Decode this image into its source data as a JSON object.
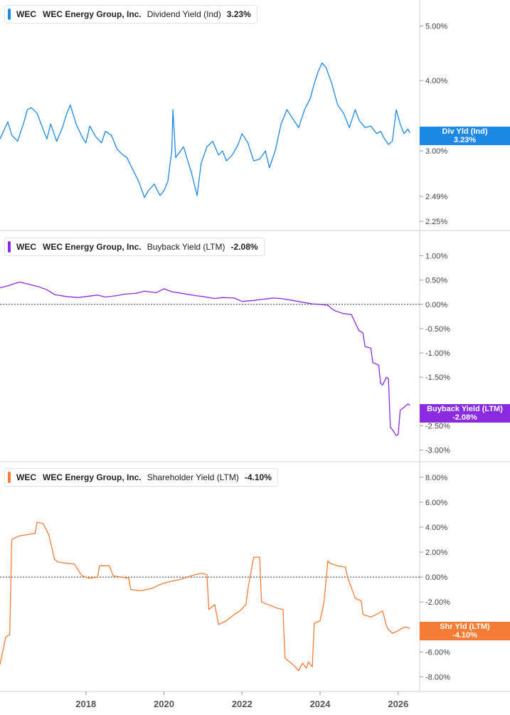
{
  "colors": {
    "dividend": "#1E88E5",
    "buyback": "#8A2BE2",
    "shareholder": "#F57C35"
  },
  "chart_data": [
    {
      "type": "line",
      "ticker": "WEC",
      "company": "WEC Energy Group, Inc.",
      "metric": "Dividend Yield (Ind)",
      "value": "3.23%",
      "badge_label": "Div Yld (Ind)",
      "badge_value": "3.23%",
      "y_scale": "log",
      "yticks": [
        "5.00%",
        "4.00%",
        "3.00%",
        "2.49%",
        "2.25%"
      ],
      "ytick_values": [
        5.0,
        4.0,
        3.0,
        2.49,
        2.25
      ],
      "ylim": [
        2.25,
        5.4
      ],
      "series": [
        {
          "x": [
            2015.8,
            2016.0,
            2016.1,
            2016.25,
            2016.4,
            2016.5,
            2016.6,
            2016.75,
            2016.9,
            2017.0,
            2017.1,
            2017.25,
            2017.4,
            2017.5,
            2017.6,
            2017.75,
            2017.9,
            2018.0,
            2018.1,
            2018.25,
            2018.4,
            2018.5,
            2018.65,
            2018.8,
            2018.95,
            2019.05,
            2019.2,
            2019.35,
            2019.5,
            2019.6,
            2019.75,
            2019.9,
            2020.0,
            2020.1,
            2020.2,
            2020.23,
            2020.3,
            2020.5,
            2020.7,
            2020.85,
            2020.95,
            2021.1,
            2021.25,
            2021.4,
            2021.5,
            2021.6,
            2021.75,
            2021.9,
            2022.0,
            2022.15,
            2022.3,
            2022.45,
            2022.6,
            2022.7,
            2022.85,
            2023.0,
            2023.15,
            2023.3,
            2023.45,
            2023.6,
            2023.75,
            2023.85,
            2023.95,
            2024.05,
            2024.15,
            2024.3,
            2024.45,
            2024.6,
            2024.75,
            2024.9,
            2025.0,
            2025.15,
            2025.3,
            2025.45,
            2025.55,
            2025.65,
            2025.75,
            2025.85,
            2025.95,
            2026.05,
            2026.15,
            2026.25,
            2026.3
          ],
          "values": [
            3.15,
            3.38,
            3.2,
            3.12,
            3.35,
            3.55,
            3.58,
            3.5,
            3.28,
            3.15,
            3.35,
            3.12,
            3.3,
            3.48,
            3.62,
            3.35,
            3.18,
            3.1,
            3.32,
            3.18,
            3.1,
            3.25,
            3.2,
            3.02,
            2.95,
            2.92,
            2.78,
            2.65,
            2.48,
            2.55,
            2.62,
            2.5,
            2.55,
            2.65,
            3.0,
            3.55,
            2.92,
            3.05,
            2.75,
            2.5,
            2.85,
            3.05,
            3.12,
            2.95,
            3.0,
            2.88,
            2.95,
            3.08,
            3.22,
            3.1,
            2.88,
            2.9,
            3.0,
            2.8,
            3.0,
            3.35,
            3.55,
            3.42,
            3.3,
            3.55,
            3.72,
            3.95,
            4.15,
            4.3,
            4.22,
            3.95,
            3.62,
            3.5,
            3.3,
            3.55,
            3.4,
            3.3,
            3.32,
            3.22,
            3.25,
            3.15,
            3.08,
            3.12,
            3.55,
            3.35,
            3.22,
            3.28,
            3.23
          ]
        }
      ]
    },
    {
      "type": "line",
      "ticker": "WEC",
      "company": "WEC Energy Group, Inc.",
      "metric": "Buyback Yield (LTM)",
      "value": "-2.08%",
      "badge_label": "Buyback Yield (LTM)",
      "badge_value": "-2.08%",
      "yticks": [
        "1.00%",
        "0.50%",
        "0.00%",
        "-0.50%",
        "-1.00%",
        "-1.50%",
        "-2.50%",
        "-3.00%"
      ],
      "ytick_values": [
        1.0,
        0.5,
        0.0,
        -0.5,
        -1.0,
        -1.5,
        -2.5,
        -3.0
      ],
      "ylim": [
        -3.05,
        1.3
      ],
      "series": [
        {
          "x": [
            2015.8,
            2016.0,
            2016.3,
            2016.5,
            2016.8,
            2017.0,
            2017.2,
            2017.5,
            2017.8,
            2018.0,
            2018.3,
            2018.5,
            2018.8,
            2019.0,
            2019.3,
            2019.5,
            2019.8,
            2020.0,
            2020.2,
            2020.5,
            2020.8,
            2021.0,
            2021.3,
            2021.5,
            2021.8,
            2022.0,
            2022.3,
            2022.5,
            2022.8,
            2023.0,
            2023.3,
            2023.5,
            2023.8,
            2024.0,
            2024.2,
            2024.3,
            2024.4,
            2024.6,
            2024.8,
            2025.0,
            2025.05,
            2025.1,
            2025.15,
            2025.3,
            2025.35,
            2025.5,
            2025.55,
            2025.6,
            2025.7,
            2025.75,
            2025.8,
            2025.85,
            2025.95,
            2026.0,
            2026.05,
            2026.15,
            2026.25,
            2026.3
          ],
          "values": [
            0.34,
            0.38,
            0.46,
            0.42,
            0.36,
            0.3,
            0.2,
            0.16,
            0.14,
            0.16,
            0.19,
            0.15,
            0.18,
            0.21,
            0.23,
            0.27,
            0.24,
            0.32,
            0.26,
            0.22,
            0.18,
            0.16,
            0.12,
            0.14,
            0.13,
            0.06,
            0.08,
            0.1,
            0.13,
            0.12,
            0.08,
            0.05,
            0.01,
            0.0,
            -0.02,
            -0.09,
            -0.14,
            -0.19,
            -0.21,
            -0.55,
            -0.56,
            -0.6,
            -0.87,
            -0.9,
            -1.2,
            -1.25,
            -1.63,
            -1.66,
            -1.5,
            -1.53,
            -2.53,
            -2.58,
            -2.7,
            -2.68,
            -2.18,
            -2.12,
            -2.05,
            -2.08
          ]
        }
      ]
    },
    {
      "type": "line",
      "ticker": "WEC",
      "company": "WEC Energy Group, Inc.",
      "metric": "Shareholder Yield (LTM)",
      "value": "-4.10%",
      "badge_label": "Shr Yld (LTM)",
      "badge_value": "-4.10%",
      "yticks": [
        "8.00%",
        "6.00%",
        "4.00%",
        "2.00%",
        "0.00%",
        "-2.00%",
        "-6.00%",
        "-8.00%"
      ],
      "ytick_values": [
        8.0,
        6.0,
        4.0,
        2.0,
        0.0,
        -2.0,
        -6.0,
        -8.0
      ],
      "ylim": [
        -8.6,
        8.5
      ],
      "series": [
        {
          "x": [
            2015.8,
            2015.95,
            2016.05,
            2016.1,
            2016.15,
            2016.3,
            2016.5,
            2016.7,
            2016.75,
            2016.9,
            2017.0,
            2017.05,
            2017.2,
            2017.3,
            2017.5,
            2017.7,
            2017.9,
            2018.1,
            2018.3,
            2018.35,
            2018.6,
            2018.7,
            2018.9,
            2019.1,
            2019.15,
            2019.4,
            2019.7,
            2019.9,
            2020.1,
            2020.4,
            2020.6,
            2020.8,
            2020.95,
            2021.1,
            2021.15,
            2021.3,
            2021.4,
            2021.6,
            2021.8,
            2021.95,
            2022.1,
            2022.15,
            2022.25,
            2022.3,
            2022.45,
            2022.5,
            2022.75,
            2022.9,
            2023.05,
            2023.1,
            2023.3,
            2023.45,
            2023.55,
            2023.65,
            2023.7,
            2023.8,
            2023.85,
            2024.0,
            2024.1,
            2024.2,
            2024.25,
            2024.45,
            2024.65,
            2024.7,
            2024.9,
            2025.05,
            2025.1,
            2025.3,
            2025.5,
            2025.6,
            2025.7,
            2025.75,
            2025.85,
            2026.0,
            2026.1,
            2026.2,
            2026.3
          ],
          "values": [
            -7.0,
            -4.8,
            -4.6,
            3.0,
            3.1,
            3.3,
            3.4,
            3.5,
            4.4,
            4.3,
            3.7,
            3.4,
            1.4,
            1.2,
            1.1,
            1.05,
            0.1,
            -0.1,
            0.0,
            0.9,
            0.9,
            0.1,
            0.0,
            -0.1,
            -1.0,
            -1.1,
            -0.9,
            -0.6,
            -0.4,
            -0.2,
            0.0,
            0.2,
            0.3,
            0.2,
            -2.6,
            -2.2,
            -3.8,
            -3.5,
            -3.0,
            -2.7,
            -2.2,
            -1.0,
            0.8,
            1.6,
            1.6,
            -2.0,
            -2.3,
            -2.5,
            -2.6,
            -6.5,
            -7.0,
            -7.5,
            -6.9,
            -7.3,
            -6.8,
            -7.2,
            -3.7,
            -3.5,
            -2.0,
            1.3,
            1.1,
            0.9,
            0.8,
            0.0,
            -1.7,
            -1.9,
            -3.0,
            -3.2,
            -2.9,
            -2.7,
            -3.9,
            -4.2,
            -4.5,
            -4.3,
            -4.1,
            -4.0,
            -4.1
          ]
        }
      ]
    }
  ],
  "x_axis": {
    "ticks": [
      "2018",
      "2020",
      "2022",
      "2024",
      "2026"
    ],
    "tick_values": [
      2018,
      2020,
      2022,
      2024,
      2026
    ],
    "range": [
      2015.8,
      2026.55
    ]
  }
}
